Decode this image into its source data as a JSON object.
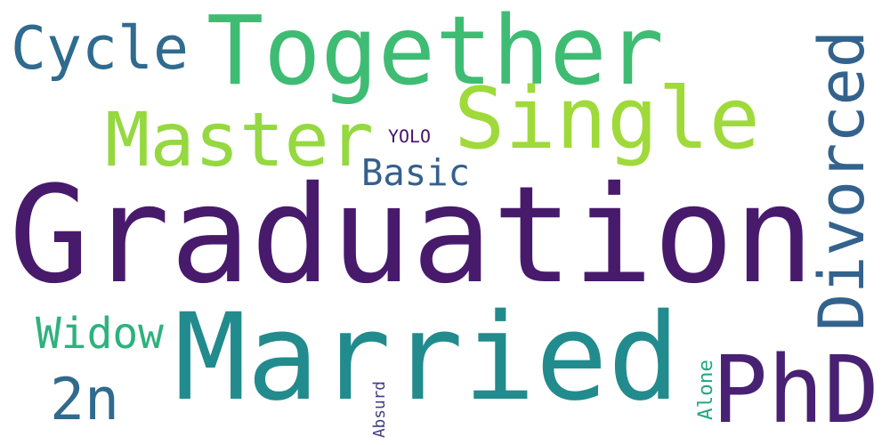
{
  "word_cloud": {
    "background": "#ffffff",
    "words": [
      {
        "text": "Graduation",
        "color": "#481a6c"
      },
      {
        "text": "Married",
        "color": "#228b8d"
      },
      {
        "text": "Together",
        "color": "#3fbc73"
      },
      {
        "text": "Single",
        "color": "#9fda3a"
      },
      {
        "text": "Master",
        "color": "#95d840"
      },
      {
        "text": "Divorced",
        "color": "#33638d"
      },
      {
        "text": "PhD",
        "color": "#482173"
      },
      {
        "text": "Cycle",
        "color": "#2f6b8e"
      },
      {
        "text": "Basic",
        "color": "#35608d"
      },
      {
        "text": "Widow",
        "color": "#2db27d"
      },
      {
        "text": "2n",
        "color": "#306a8e"
      },
      {
        "text": "YOLO",
        "color": "#481467"
      },
      {
        "text": "Alone",
        "color": "#22a884"
      },
      {
        "text": "Absurd",
        "color": "#424086"
      }
    ]
  }
}
